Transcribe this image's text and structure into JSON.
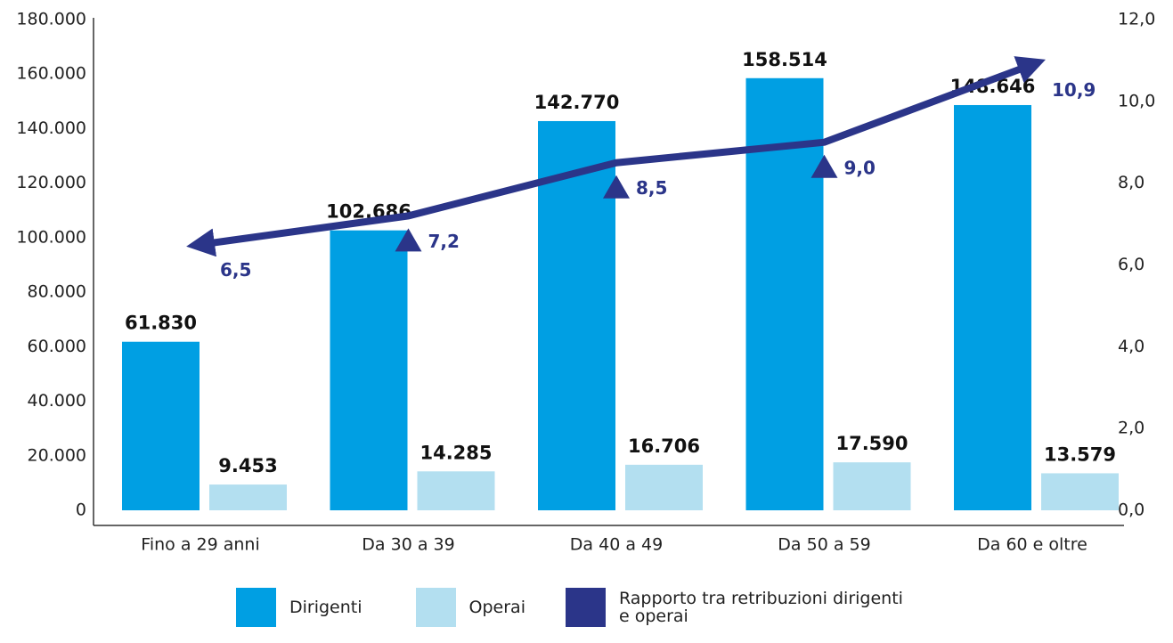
{
  "chart_data": {
    "type": "bar",
    "categories": [
      "Fino a 29 anni",
      "Da 30 a 39",
      "Da 40 a 49",
      "Da 50 a 59",
      "Da 60 e oltre"
    ],
    "series": [
      {
        "name": "Dirigenti",
        "color": "#009fe3",
        "values": [
          61830,
          102686,
          142770,
          158514,
          148646
        ],
        "value_labels": [
          "61.830",
          "102.686",
          "142.770",
          "158.514",
          "148.646"
        ]
      },
      {
        "name": "Operai",
        "color": "#b3dff0",
        "values": [
          9453,
          14285,
          16706,
          17590,
          13579
        ],
        "value_labels": [
          "9.453",
          "14.285",
          "16.706",
          "17.590",
          "13.579"
        ]
      },
      {
        "name": "Rapporto tra retribuzioni dirigenti e operai",
        "color": "#2b3589",
        "type": "line",
        "axis": "y2",
        "values": [
          6.5,
          7.2,
          8.5,
          9.0,
          10.9
        ],
        "value_labels": [
          "6,5",
          "7,2",
          "8,5",
          "9,0",
          "10,9"
        ]
      }
    ],
    "ylim": [
      0,
      180000
    ],
    "yticks": [
      0,
      {
        "value": 20000,
        "label": "20.000"
      },
      {
        "value": 40000,
        "label": "40.000"
      },
      {
        "value": 60000,
        "label": "60.000"
      },
      {
        "value": 80000,
        "label": "80.000"
      },
      {
        "value": 100000,
        "label": "100.000"
      },
      {
        "value": 120000,
        "label": "120.000"
      },
      {
        "value": 140000,
        "label": "140.000"
      },
      {
        "value": 160000,
        "label": "160.000"
      },
      {
        "value": 180000,
        "label": "180.000"
      }
    ],
    "y2lim": [
      0,
      12
    ],
    "y2ticks": [
      {
        "value": 0,
        "label": "0,0"
      },
      {
        "value": 2,
        "label": "2,0"
      },
      {
        "value": 4,
        "label": "4,0"
      },
      {
        "value": 6,
        "label": "6,0"
      },
      {
        "value": 8,
        "label": "8,0"
      },
      {
        "value": 10,
        "label": "10,0"
      },
      {
        "value": 12,
        "label": "12,0"
      }
    ],
    "grid": false
  }
}
